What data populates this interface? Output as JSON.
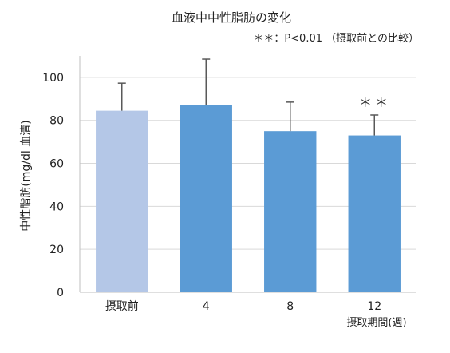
{
  "chart_data": {
    "type": "bar",
    "title": "血液中中性脂肪の変化",
    "note": "＊＊：P<0.01 （摂取前との比較）",
    "ylabel": "中性脂肪(mg/dl 血清)",
    "xunit": "摂取期間(週)",
    "categories": [
      "摂取前",
      "4",
      "8",
      "12"
    ],
    "values": [
      84.5,
      87,
      75,
      73
    ],
    "errors": [
      12.8,
      21.5,
      13.5,
      9.5
    ],
    "significance": [
      "",
      "",
      "",
      "＊＊"
    ],
    "colors": [
      "#b4c7e7",
      "#5b9bd5",
      "#5b9bd5",
      "#5b9bd5"
    ],
    "error_bar_color": "#595959",
    "gridline_color": "#d9d9d9",
    "ylim": [
      0,
      110
    ],
    "yticks": [
      0,
      20,
      40,
      60,
      80,
      100
    ],
    "grid": true,
    "legend": "none"
  }
}
